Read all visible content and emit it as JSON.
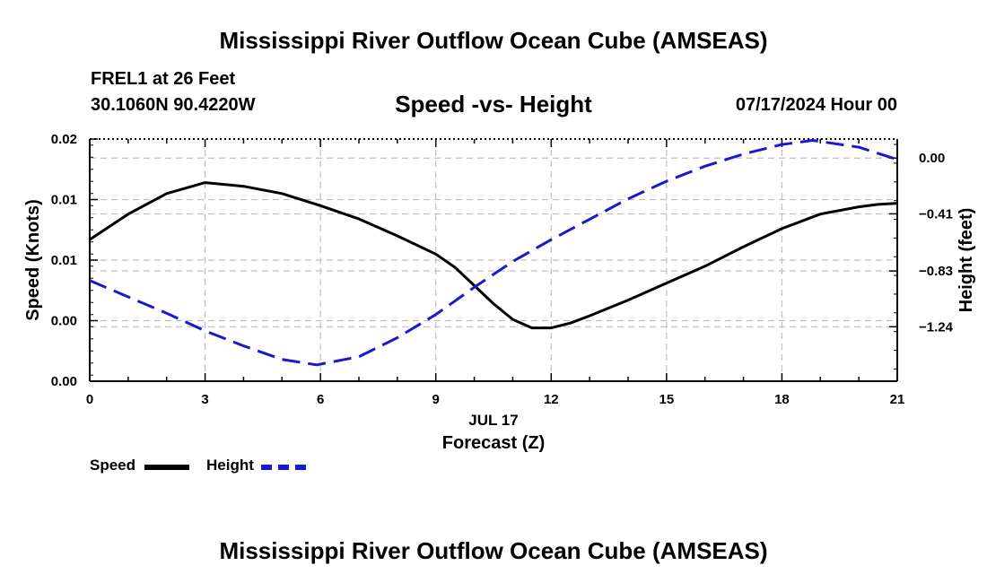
{
  "header": {
    "title": "Mississippi River Outflow Ocean Cube (AMSEAS)",
    "station": "FREL1 at 26 Feet",
    "coords": "30.1060N  90.4220W",
    "subtitle": "Speed -vs- Height",
    "datetime": "07/17/2024 Hour 00"
  },
  "footer": {
    "title": "Mississippi River Outflow Ocean Cube (AMSEAS)"
  },
  "legend": {
    "speed_label": "Speed",
    "height_label": "Height"
  },
  "colors": {
    "speed": "#000000",
    "height": "#1a1acc",
    "grid": "#c0c0c0"
  },
  "chart_data": {
    "type": "line",
    "title": "Speed -vs- Height",
    "xlabel": "Forecast (Z)",
    "date_label": "JUL 17",
    "ylabel": "Speed (Knots)",
    "y2label": "Height (feet)",
    "xlim": [
      0,
      21
    ],
    "ylim": [
      0,
      0.02
    ],
    "y2lim": [
      -1.64,
      0.14
    ],
    "x_ticks": [
      0,
      3,
      6,
      9,
      12,
      15,
      18,
      21
    ],
    "y_ticks": [
      0.0,
      0.005,
      0.01,
      0.015,
      0.02
    ],
    "y_tick_labels": [
      "0.00",
      "0.00",
      "0.01",
      "0.01",
      "0.02"
    ],
    "y2_ticks": [
      0.0,
      -0.41,
      -0.83,
      -1.24
    ],
    "y2_tick_labels": [
      "0.00",
      "−0.41",
      "−0.83",
      "−1.24"
    ],
    "grid": true,
    "series": [
      {
        "name": "Speed",
        "axis": "left",
        "style": "solid",
        "x": [
          0,
          1,
          2,
          3,
          4,
          5,
          6,
          7,
          8,
          9,
          9.5,
          10,
          10.5,
          11,
          11.5,
          12,
          12.5,
          13,
          14,
          15,
          16,
          17,
          18,
          19,
          20,
          20.5,
          21
        ],
        "values": [
          0.0117,
          0.0138,
          0.0155,
          0.0164,
          0.0161,
          0.0155,
          0.0145,
          0.0134,
          0.012,
          0.0105,
          0.0094,
          0.0079,
          0.0064,
          0.0051,
          0.0044,
          0.0044,
          0.0048,
          0.0054,
          0.0067,
          0.0081,
          0.0095,
          0.0111,
          0.0126,
          0.0138,
          0.0144,
          0.0146,
          0.0147
        ]
      },
      {
        "name": "Height",
        "axis": "right",
        "style": "dashed",
        "x": [
          0,
          1,
          2,
          3,
          4,
          5,
          5.9,
          7,
          8,
          9,
          10,
          11,
          12,
          13,
          14,
          15,
          16,
          17,
          18,
          18.8,
          20,
          21
        ],
        "values": [
          -0.9,
          -1.02,
          -1.14,
          -1.27,
          -1.38,
          -1.48,
          -1.52,
          -1.46,
          -1.32,
          -1.15,
          -0.95,
          -0.76,
          -0.6,
          -0.45,
          -0.3,
          -0.17,
          -0.06,
          0.03,
          0.1,
          0.13,
          0.08,
          -0.01
        ]
      }
    ]
  }
}
